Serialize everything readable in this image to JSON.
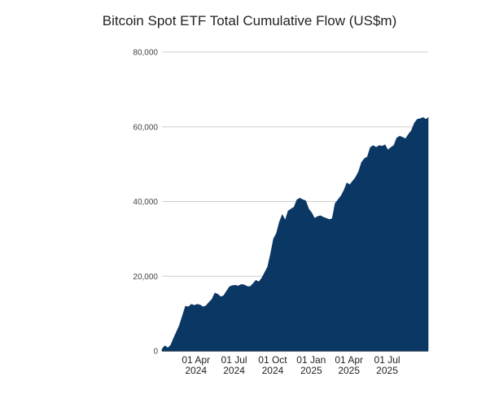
{
  "chart_data": {
    "type": "area",
    "title": "Bitcoin Spot ETF Total Cumulative Flow (US$m)",
    "xlabel": "",
    "ylabel": "",
    "ylim": [
      0,
      80000
    ],
    "yticks": [
      "0",
      "20,000",
      "40,000",
      "60,000",
      "80,000"
    ],
    "ytick_values": [
      0,
      20000,
      40000,
      60000,
      80000
    ],
    "grid": true,
    "legend": "none",
    "color": "#0b3765",
    "xlim": [
      "2024-01-11",
      "2025-10-07"
    ],
    "xticks": [
      {
        "date": "2024-04-01",
        "line1": "01 Apr",
        "line2": "2024"
      },
      {
        "date": "2024-07-01",
        "line1": "01 Jul",
        "line2": "2024"
      },
      {
        "date": "2024-10-01",
        "line1": "01 Oct",
        "line2": "2024"
      },
      {
        "date": "2025-01-01",
        "line1": "01 Jan",
        "line2": "2025"
      },
      {
        "date": "2025-04-01",
        "line1": "01 Apr",
        "line2": "2025"
      },
      {
        "date": "2025-07-01",
        "line1": "01 Jul",
        "line2": "2025"
      }
    ],
    "series": [
      {
        "x": [
          "2024-01-11",
          "2024-01-18",
          "2024-01-25",
          "2024-02-01",
          "2024-02-08",
          "2024-02-15",
          "2024-02-22",
          "2024-02-29",
          "2024-03-07",
          "2024-03-14",
          "2024-03-21",
          "2024-03-28",
          "2024-04-04",
          "2024-04-11",
          "2024-04-18",
          "2024-04-25",
          "2024-05-02",
          "2024-05-09",
          "2024-05-16",
          "2024-05-23",
          "2024-05-30",
          "2024-06-06",
          "2024-06-13",
          "2024-06-20",
          "2024-06-27",
          "2024-07-04",
          "2024-07-11",
          "2024-07-18",
          "2024-07-25",
          "2024-08-01",
          "2024-08-08",
          "2024-08-15",
          "2024-08-22",
          "2024-08-29",
          "2024-09-05",
          "2024-09-12",
          "2024-09-19",
          "2024-09-26",
          "2024-10-03",
          "2024-10-10",
          "2024-10-17",
          "2024-10-24",
          "2024-10-31",
          "2024-11-07",
          "2024-11-14",
          "2024-11-21",
          "2024-11-28",
          "2024-12-05",
          "2024-12-12",
          "2024-12-19",
          "2024-12-26",
          "2025-01-02",
          "2025-01-09",
          "2025-01-16",
          "2025-01-23",
          "2025-01-30",
          "2025-02-06",
          "2025-02-13",
          "2025-02-20",
          "2025-02-27",
          "2025-03-06",
          "2025-03-13",
          "2025-03-20",
          "2025-03-27",
          "2025-04-03",
          "2025-04-10",
          "2025-04-17",
          "2025-04-24",
          "2025-05-01",
          "2025-05-08",
          "2025-05-15",
          "2025-05-22",
          "2025-05-29",
          "2025-06-05",
          "2025-06-12",
          "2025-06-19",
          "2025-06-26",
          "2025-07-03",
          "2025-07-10",
          "2025-07-17",
          "2025-07-24",
          "2025-07-31",
          "2025-08-07",
          "2025-08-14",
          "2025-08-21",
          "2025-08-28",
          "2025-09-04",
          "2025-09-11",
          "2025-09-18",
          "2025-09-25",
          "2025-10-02",
          "2025-10-07"
        ],
        "y": [
          500,
          1400,
          800,
          1600,
          3500,
          5200,
          7000,
          9500,
          12000,
          11800,
          12500,
          12200,
          12500,
          12300,
          11800,
          12100,
          13000,
          13800,
          15500,
          15200,
          14500,
          14800,
          16000,
          17200,
          17500,
          17600,
          17400,
          17800,
          17700,
          17300,
          17200,
          18000,
          18900,
          18500,
          19500,
          21000,
          22500,
          26000,
          30000,
          31500,
          34500,
          36500,
          35000,
          37500,
          38000,
          38500,
          40500,
          40900,
          40500,
          40200,
          38000,
          37000,
          35500,
          36000,
          36200,
          35800,
          35500,
          35200,
          35400,
          39500,
          40500,
          41500,
          43000,
          45000,
          44500,
          45500,
          46500,
          48000,
          50500,
          51500,
          52000,
          54500,
          55000,
          54500,
          55000,
          54800,
          55200,
          53800,
          54500,
          55000,
          57000,
          57500,
          57200,
          56800,
          58000,
          59000,
          61000,
          62000,
          62200,
          62500,
          62000,
          62500
        ]
      }
    ]
  }
}
